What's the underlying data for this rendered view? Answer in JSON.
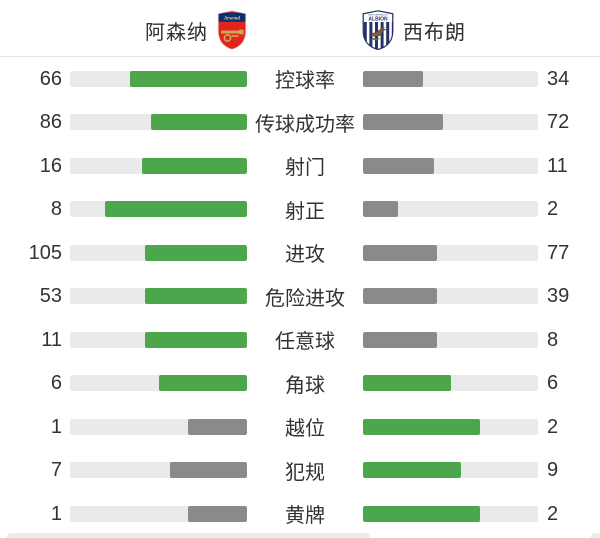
{
  "header": {
    "home_team": {
      "name": "阿森纳"
    },
    "away_team": {
      "name": "西布朗"
    },
    "crest_texts": {
      "arsenal": "Arsenal",
      "west_bromwich": "WEST BROMWICH",
      "albion": "ALBION"
    }
  },
  "chart_data": {
    "type": "bar",
    "layout": "horizontal-opposed-pairs, labels centered, home bars right-anchored, away bars left-anchored",
    "categories": [
      "控球率",
      "传球成功率",
      "射门",
      "射正",
      "进攻",
      "危险进攻",
      "任意球",
      "角球",
      "越位",
      "犯规",
      "黄牌"
    ],
    "series": [
      {
        "name": "阿森纳",
        "values": [
          66,
          86,
          16,
          8,
          105,
          53,
          11,
          6,
          1,
          7,
          1
        ]
      },
      {
        "name": "西布朗",
        "values": [
          34,
          72,
          11,
          2,
          77,
          39,
          8,
          6,
          2,
          9,
          2
        ]
      }
    ],
    "fill_rule": "bar fill fraction = value / (home value + away value)",
    "color_rule": "green when value >= opponent value, gray otherwise"
  },
  "colors": {
    "lead_fill": "#4CA64C",
    "trail_fill": "#8A8A8A",
    "track": "#EAEAEA",
    "divider": "#E3E3E3",
    "text": "#333333"
  }
}
